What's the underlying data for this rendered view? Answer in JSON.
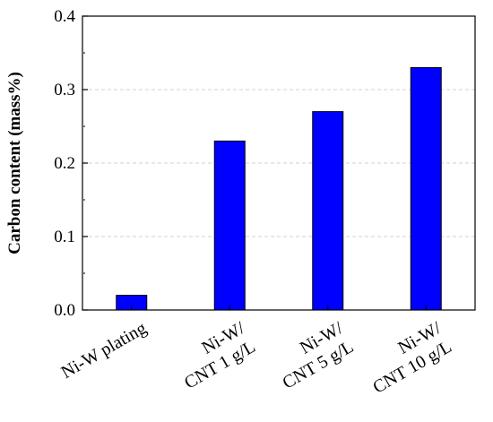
{
  "chart_data": {
    "type": "bar",
    "categories": [
      [
        "Ni-W plating"
      ],
      [
        "Ni-W/",
        "CNT 1 g/L"
      ],
      [
        "Ni-W/",
        "CNT 5 g/L"
      ],
      [
        "Ni-W/",
        "CNT 10 g/L"
      ]
    ],
    "values": [
      0.02,
      0.23,
      0.27,
      0.33
    ],
    "title": "",
    "xlabel": "",
    "ylabel": "Carbon content (mass%)",
    "ylim": [
      0.0,
      0.4
    ],
    "yticks": [
      "0.0",
      "0.1",
      "0.2",
      "0.3",
      "0.4"
    ],
    "grid": "horizontal dashed",
    "bar_color": "#0000ff",
    "bar_edge_color": "#000000"
  }
}
